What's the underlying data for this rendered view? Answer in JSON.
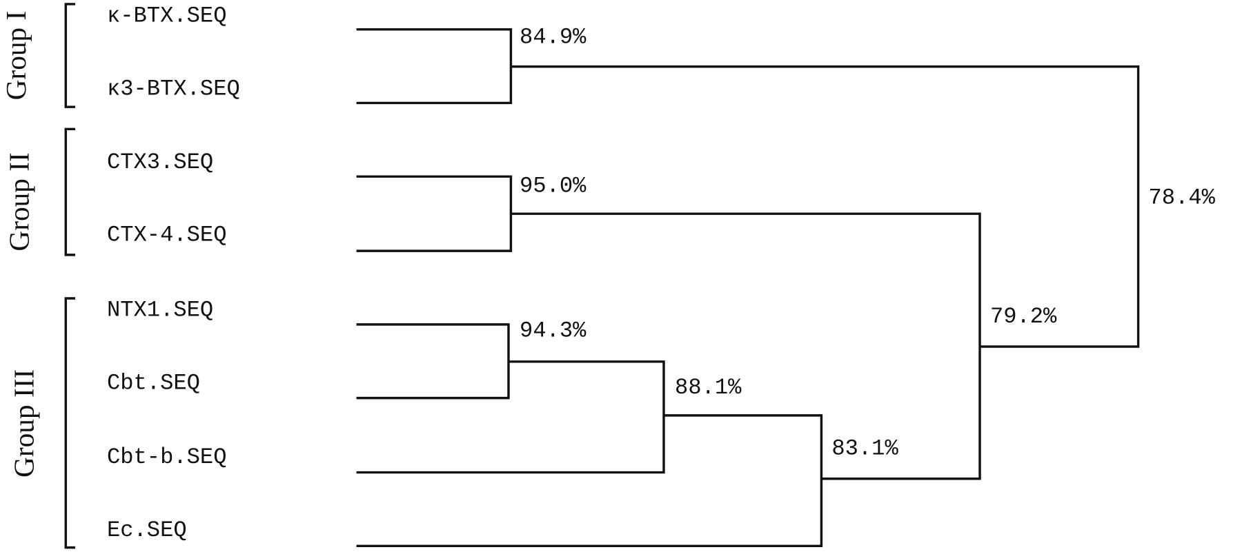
{
  "groups": [
    {
      "label": "Group I"
    },
    {
      "label": "Group II"
    },
    {
      "label": "Group III"
    }
  ],
  "leaves": [
    "κ-BTX.SEQ",
    "κ3-BTX.SEQ",
    "CTX3.SEQ",
    "CTX-4.SEQ",
    "NTX1.SEQ",
    "Cbt.SEQ",
    "Cbt-b.SEQ",
    "Ec.SEQ"
  ],
  "nodes": [
    {
      "label": "84.9%"
    },
    {
      "label": "95.0%"
    },
    {
      "label": "94.3%"
    },
    {
      "label": "88.1%"
    },
    {
      "label": "83.1%"
    },
    {
      "label": "79.2%"
    },
    {
      "label": "78.4%"
    }
  ]
}
